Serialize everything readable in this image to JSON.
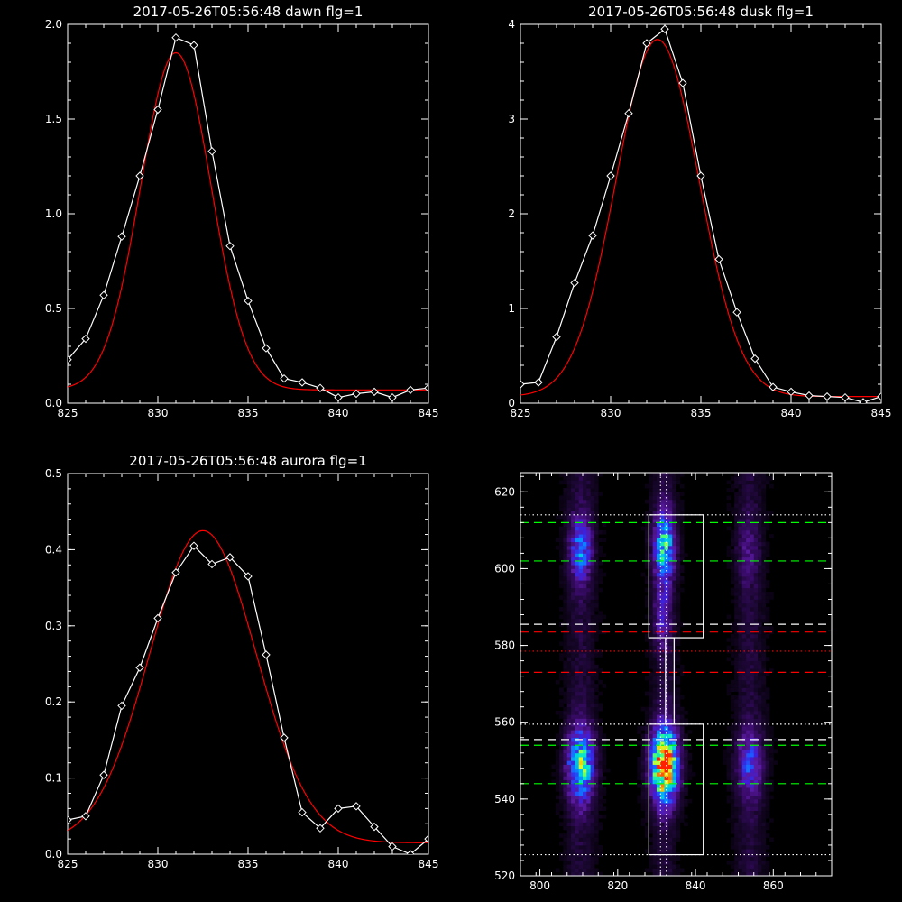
{
  "chart_data": [
    {
      "type": "line",
      "title": "2017-05-26T05:56:48 dawn flg=1",
      "xlim": [
        825,
        845
      ],
      "ylim": [
        0,
        2.0
      ],
      "xticks": [
        825,
        830,
        835,
        840,
        845
      ],
      "xtick_labels": [
        "825",
        "830",
        "835",
        "840",
        "845"
      ],
      "yticks": [
        0,
        0.5,
        1.0,
        1.5,
        2.0
      ],
      "ytick_labels": [
        "0.0",
        "0.5",
        "1.0",
        "1.5",
        "2.0"
      ],
      "series": [
        {
          "kind": "data",
          "color": "#ffffff",
          "marker": "diamond",
          "x": [
            825,
            826,
            827,
            828,
            829,
            830,
            831,
            832,
            833,
            834,
            835,
            836,
            837,
            838,
            839,
            840,
            841,
            842,
            843,
            844,
            845
          ],
          "y": [
            0.23,
            0.34,
            0.57,
            0.88,
            1.2,
            1.55,
            1.93,
            1.89,
            1.33,
            0.83,
            0.54,
            0.29,
            0.13,
            0.11,
            0.08,
            0.03,
            0.05,
            0.06,
            0.03,
            0.07,
            0.08
          ]
        },
        {
          "kind": "fit",
          "color": "#ff0000",
          "model": "gaussian",
          "amplitude": 1.78,
          "center": 831.0,
          "sigma": 1.95,
          "baseline": 0.07
        }
      ]
    },
    {
      "type": "line",
      "title": "2017-05-26T05:56:48 dusk flg=1",
      "xlim": [
        825,
        845
      ],
      "ylim": [
        0,
        4
      ],
      "xticks": [
        825,
        830,
        835,
        840,
        845
      ],
      "xtick_labels": [
        "825",
        "830",
        "835",
        "840",
        "845"
      ],
      "yticks": [
        0,
        1,
        2,
        3,
        4
      ],
      "ytick_labels": [
        "0",
        "1",
        "2",
        "3",
        "4"
      ],
      "series": [
        {
          "kind": "data",
          "color": "#ffffff",
          "marker": "diamond",
          "x": [
            825,
            826,
            827,
            828,
            829,
            830,
            831,
            832,
            833,
            834,
            835,
            836,
            837,
            838,
            839,
            840,
            841,
            842,
            843,
            844,
            845
          ],
          "y": [
            0.2,
            0.22,
            0.7,
            1.27,
            1.77,
            2.4,
            3.06,
            3.8,
            3.95,
            3.38,
            2.4,
            1.52,
            0.96,
            0.47,
            0.17,
            0.12,
            0.08,
            0.07,
            0.06,
            0.01,
            0.07
          ]
        },
        {
          "kind": "fit",
          "color": "#ff0000",
          "model": "gaussian",
          "amplitude": 3.77,
          "center": 832.6,
          "sigma": 2.3,
          "baseline": 0.07
        }
      ]
    },
    {
      "type": "line",
      "title": "2017-05-26T05:56:48 aurora flg=1",
      "xlim": [
        825,
        845
      ],
      "ylim": [
        0,
        0.5
      ],
      "xticks": [
        825,
        830,
        835,
        840,
        845
      ],
      "xtick_labels": [
        "825",
        "830",
        "835",
        "840",
        "845"
      ],
      "yticks": [
        0,
        0.1,
        0.2,
        0.3,
        0.4,
        0.5
      ],
      "ytick_labels": [
        "0.0",
        "0.1",
        "0.2",
        "0.3",
        "0.4",
        "0.5"
      ],
      "series": [
        {
          "kind": "data",
          "color": "#ffffff",
          "marker": "diamond",
          "x": [
            825,
            826,
            827,
            828,
            829,
            830,
            831,
            832,
            833,
            834,
            835,
            836,
            837,
            838,
            839,
            840,
            841,
            842,
            843,
            844,
            845
          ],
          "y": [
            0.045,
            0.05,
            0.104,
            0.195,
            0.245,
            0.31,
            0.37,
            0.405,
            0.381,
            0.39,
            0.365,
            0.262,
            0.153,
            0.055,
            0.034,
            0.06,
            0.063,
            0.036,
            0.01,
            0.0,
            0.02
          ]
        },
        {
          "kind": "fit",
          "color": "#ff0000",
          "model": "gaussian",
          "amplitude": 0.41,
          "center": 832.5,
          "sigma": 2.95,
          "baseline": 0.015
        }
      ]
    },
    {
      "type": "heatmap",
      "xlim": [
        795,
        875
      ],
      "ylim": [
        520,
        625
      ],
      "xticks": [
        800,
        820,
        840,
        860
      ],
      "xtick_labels": [
        "800",
        "820",
        "840",
        "860"
      ],
      "yticks": [
        520,
        540,
        560,
        580,
        600,
        620
      ],
      "ytick_labels": [
        "520",
        "540",
        "560",
        "580",
        "600",
        "620"
      ],
      "grid": [
        80,
        105
      ],
      "colors": [
        "#000000",
        "#1a0730",
        "#3a0b6a",
        "#5a1ba2",
        "#3e1ed8",
        "#1f55ff",
        "#009cff",
        "#00e0d8",
        "#3cff7a",
        "#d8ff2a",
        "#ffb000",
        "#ff2000"
      ],
      "columns": [
        {
          "x": 810.5,
          "width": 2.6
        },
        {
          "x": 832.0,
          "width": 2.2
        },
        {
          "x": 854.0,
          "width": 2.6
        }
      ],
      "spots": [
        {
          "x": 810.5,
          "y": 549,
          "sx": 2.4,
          "sy": 6.5,
          "amp": 0.6
        },
        {
          "x": 810.5,
          "y": 605,
          "sx": 2.0,
          "sy": 6.0,
          "amp": 0.38
        },
        {
          "x": 832.0,
          "y": 549,
          "sx": 2.4,
          "sy": 6.5,
          "amp": 1.0
        },
        {
          "x": 832.0,
          "y": 606,
          "sx": 1.9,
          "sy": 6.0,
          "amp": 0.55
        },
        {
          "x": 831.5,
          "y": 588,
          "sx": 1.5,
          "sy": 6.0,
          "amp": 0.22
        },
        {
          "x": 854.0,
          "y": 549,
          "sx": 2.4,
          "sy": 6.0,
          "amp": 0.3
        },
        {
          "x": 853.5,
          "y": 604,
          "sx": 2.0,
          "sy": 6.0,
          "amp": 0.12
        }
      ],
      "hlines": [
        {
          "y": 612,
          "color": "#00ff00",
          "style": "dashed"
        },
        {
          "y": 602,
          "color": "#00ff00",
          "style": "dashed"
        },
        {
          "y": 554,
          "color": "#00ff00",
          "style": "dashed"
        },
        {
          "y": 544,
          "color": "#00ff00",
          "style": "dashed"
        },
        {
          "y": 585.5,
          "color": "#ffffff",
          "style": "dashed"
        },
        {
          "y": 555.5,
          "color": "#ffffff",
          "style": "dashed"
        },
        {
          "y": 614,
          "color": "#ffffff",
          "style": "dotted"
        },
        {
          "y": 559.5,
          "color": "#ffffff",
          "style": "dotted"
        },
        {
          "y": 525.5,
          "color": "#ffffff",
          "style": "dotted"
        },
        {
          "y": 583.5,
          "color": "#ff0000",
          "style": "dashed"
        },
        {
          "y": 573,
          "color": "#ff0000",
          "style": "dashed"
        },
        {
          "y": 578.5,
          "color": "#ff0000",
          "style": "dotted"
        }
      ],
      "vlines": [
        {
          "x": 831.0,
          "color": "#ffffff",
          "style": "dotted"
        },
        {
          "x": 832.5,
          "color": "#ffffff",
          "style": "dotted"
        }
      ],
      "boxes": [
        {
          "x0": 828,
          "x1": 842,
          "y0": 582,
          "y1": 614,
          "color": "#ffffff"
        },
        {
          "x0": 828,
          "x1": 842,
          "y0": 525.5,
          "y1": 559.5,
          "color": "#ffffff"
        },
        {
          "x0": 832.3,
          "x1": 834.5,
          "y0": 559.5,
          "y1": 582,
          "color": "#ffffff"
        }
      ]
    }
  ]
}
